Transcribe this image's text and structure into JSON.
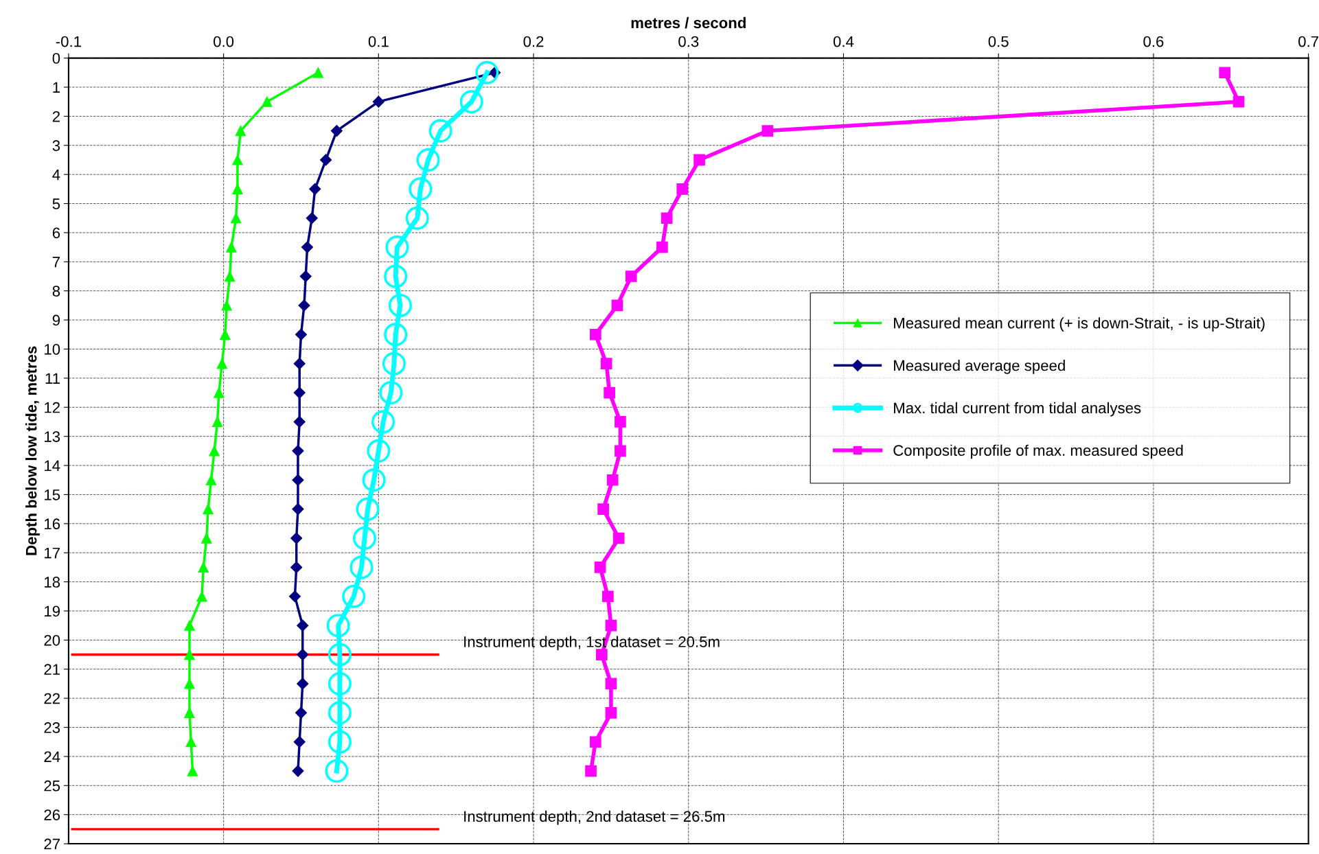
{
  "chart_data": {
    "type": "line",
    "xlabel": "metres / second",
    "ylabel": "Depth below low tide, metres",
    "series": [
      {
        "name": "Measured mean current (+ is down-Strait, - is up-Strait)",
        "color": "#00ff00",
        "marker": "triangle",
        "x": [
          0.061,
          0.028,
          0.011,
          0.009,
          0.009,
          0.008,
          0.005,
          0.004,
          0.002,
          0.001,
          -0.001,
          -0.003,
          -0.004,
          -0.006,
          -0.008,
          -0.01,
          -0.011,
          -0.013,
          -0.014,
          -0.022,
          -0.022,
          -0.022,
          -0.022,
          -0.021,
          -0.02
        ],
        "values": [
          0.5,
          1.5,
          2.5,
          3.5,
          4.5,
          5.5,
          6.5,
          7.5,
          8.5,
          9.5,
          10.5,
          11.5,
          12.5,
          13.5,
          14.5,
          15.5,
          16.5,
          17.5,
          18.5,
          19.5,
          20.5,
          21.5,
          22.5,
          23.5,
          24.5
        ]
      },
      {
        "name": "Measured average speed",
        "color": "#000080",
        "marker": "diamond",
        "x": [
          0.175,
          0.1,
          0.073,
          0.066,
          0.059,
          0.057,
          0.054,
          0.053,
          0.052,
          0.05,
          0.049,
          0.049,
          0.049,
          0.048,
          0.048,
          0.048,
          0.047,
          0.047,
          0.046,
          0.051,
          0.051,
          0.051,
          0.05,
          0.049,
          0.048
        ],
        "values": [
          0.5,
          1.5,
          2.5,
          3.5,
          4.5,
          5.5,
          6.5,
          7.5,
          8.5,
          9.5,
          10.5,
          11.5,
          12.5,
          13.5,
          14.5,
          15.5,
          16.5,
          17.5,
          18.5,
          19.5,
          20.5,
          21.5,
          22.5,
          23.5,
          24.5
        ]
      },
      {
        "name": "Max. tidal current from tidal analyses",
        "color": "#00ffff",
        "marker": "circle",
        "x": [
          0.17,
          0.16,
          0.14,
          0.132,
          0.127,
          0.125,
          0.112,
          0.111,
          0.114,
          0.111,
          0.11,
          0.108,
          0.103,
          0.1,
          0.097,
          0.093,
          0.091,
          0.089,
          0.084,
          0.074,
          0.075,
          0.075,
          0.075,
          0.075,
          0.073
        ],
        "values": [
          0.5,
          1.5,
          2.5,
          3.5,
          4.5,
          5.5,
          6.5,
          7.5,
          8.5,
          9.5,
          10.5,
          11.5,
          12.5,
          13.5,
          14.5,
          15.5,
          16.5,
          17.5,
          18.5,
          19.5,
          20.5,
          21.5,
          22.5,
          23.5,
          24.5
        ]
      },
      {
        "name": "Composite profile of max. measured speed",
        "color": "#ff00ff",
        "marker": "square",
        "x": [
          0.646,
          0.655,
          0.351,
          0.307,
          0.296,
          0.286,
          0.283,
          0.263,
          0.254,
          0.24,
          0.247,
          0.249,
          0.256,
          0.256,
          0.251,
          0.245,
          0.255,
          0.243,
          0.248,
          0.25,
          0.244,
          0.25,
          0.25,
          0.24,
          0.237
        ],
        "values": [
          0.5,
          1.5,
          2.5,
          3.5,
          4.5,
          5.5,
          6.5,
          7.5,
          8.5,
          9.5,
          10.5,
          11.5,
          12.5,
          13.5,
          14.5,
          15.5,
          16.5,
          17.5,
          18.5,
          19.5,
          20.5,
          21.5,
          22.5,
          23.5,
          24.5
        ]
      }
    ],
    "ref_lines": [
      {
        "axis": "y",
        "value": 20.5,
        "label": "Instrument depth, 1st dataset = 20.5m",
        "color": "#ff0000"
      },
      {
        "axis": "y",
        "value": 26.5,
        "label": "Instrument depth, 2nd dataset = 26.5m",
        "color": "#ff0000"
      }
    ],
    "xlim": [
      -0.1,
      0.7
    ],
    "xticks": [
      -0.1,
      {
        "value": 0,
        "label": "0.0"
      },
      0.1,
      0.2,
      0.3,
      0.4,
      0.5,
      0.6,
      0.7
    ],
    "ylim": [
      27,
      0
    ],
    "yticks": [
      0,
      1,
      2,
      3,
      4,
      5,
      6,
      7,
      8,
      9,
      10,
      11,
      12,
      13,
      14,
      15,
      16,
      17,
      18,
      19,
      20,
      21,
      22,
      23,
      24,
      25,
      26,
      27
    ],
    "grid": true,
    "legend": "right"
  }
}
